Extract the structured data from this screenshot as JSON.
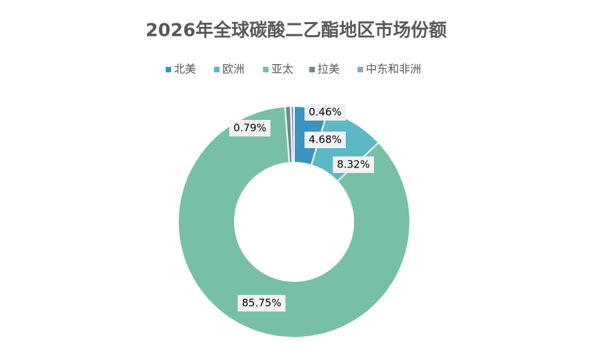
{
  "chart_data": {
    "type": "donut",
    "title": "2026年全球碳酸二乙酯地区市场份额",
    "categories": [
      "北美",
      "欧洲",
      "亚太",
      "拉美",
      "中东和非洲"
    ],
    "values": [
      4.68,
      8.32,
      85.75,
      0.79,
      0.46
    ],
    "value_labels": [
      "4.68%",
      "8.32%",
      "85.75%",
      "0.79%",
      "0.46%"
    ],
    "colors": [
      "#3a94be",
      "#5bb8c4",
      "#78bfa8",
      "#6e8a8e",
      "#8aa8be"
    ],
    "legend": "top"
  }
}
